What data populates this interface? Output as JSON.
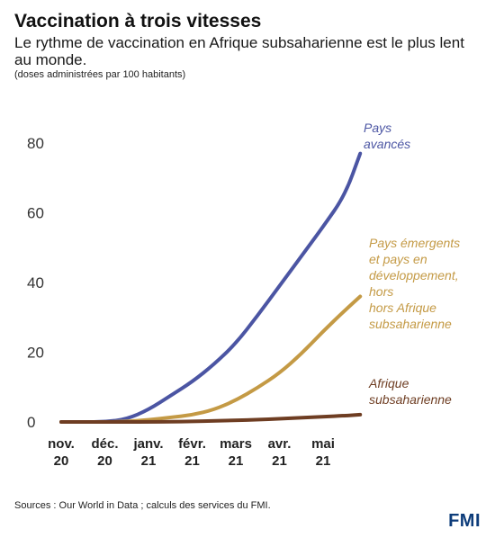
{
  "header": {
    "title": "Vaccination à trois vitesses",
    "subtitle": "Le rythme de vaccination en Afrique subsaharienne est le plus lent au monde.",
    "unit": "(doses administrées par 100 habitants)"
  },
  "footer": {
    "source": "Sources : Our World in Data ; calculs des services du FMI.",
    "logo": "FMI"
  },
  "chart_data": {
    "type": "line",
    "title": "Vaccination à trois vitesses",
    "subtitle": "Le rythme de vaccination en Afrique subsaharienne est le plus lent au monde.",
    "ylabel": "(doses administrées par 100 habitants)",
    "xlabel": "",
    "ylim": [
      0,
      80
    ],
    "yticks": [
      0,
      20,
      40,
      60,
      80
    ],
    "xticks": [
      {
        "line1": "nov.",
        "line2": "20"
      },
      {
        "line1": "déc.",
        "line2": "20"
      },
      {
        "line1": "janv.",
        "line2": "21"
      },
      {
        "line1": "févr.",
        "line2": "21"
      },
      {
        "line1": "mars",
        "line2": "21"
      },
      {
        "line1": "avr.",
        "line2": "21"
      },
      {
        "line1": "mai",
        "line2": "21"
      }
    ],
    "x": [
      0,
      0.5,
      1,
      1.5,
      2,
      2.5,
      3,
      3.5,
      4,
      4.5,
      5,
      5.5,
      6,
      6.5,
      6.85
    ],
    "series": [
      {
        "name": "Pays avancés",
        "label_lines": [
          "Pays",
          "avancés"
        ],
        "color": "#4b55a3",
        "values": [
          0,
          0,
          0,
          0.8,
          3.5,
          7.5,
          11.5,
          16.5,
          22.5,
          30.5,
          39,
          47.5,
          56,
          65,
          77
        ]
      },
      {
        "name": "Pays émergents et pays en développement, hors hors Afrique subsaharienne",
        "label_lines": [
          "Pays émergents",
          "et pays en",
          "développement,",
          "hors",
          "hors Afrique",
          "subsaharienne"
        ],
        "color": "#c49a45",
        "values": [
          0,
          0,
          0,
          0.1,
          0.6,
          1.3,
          2.0,
          3.5,
          6.2,
          9.8,
          14,
          19.5,
          26,
          32,
          36
        ]
      },
      {
        "name": "Afrique subsaharienne",
        "label_lines": [
          "Afrique",
          "subsaharienne"
        ],
        "color": "#6e3d22",
        "values": [
          0,
          0,
          0,
          0,
          0,
          0.05,
          0.15,
          0.3,
          0.45,
          0.65,
          0.9,
          1.2,
          1.5,
          1.8,
          2.1
        ]
      }
    ]
  }
}
